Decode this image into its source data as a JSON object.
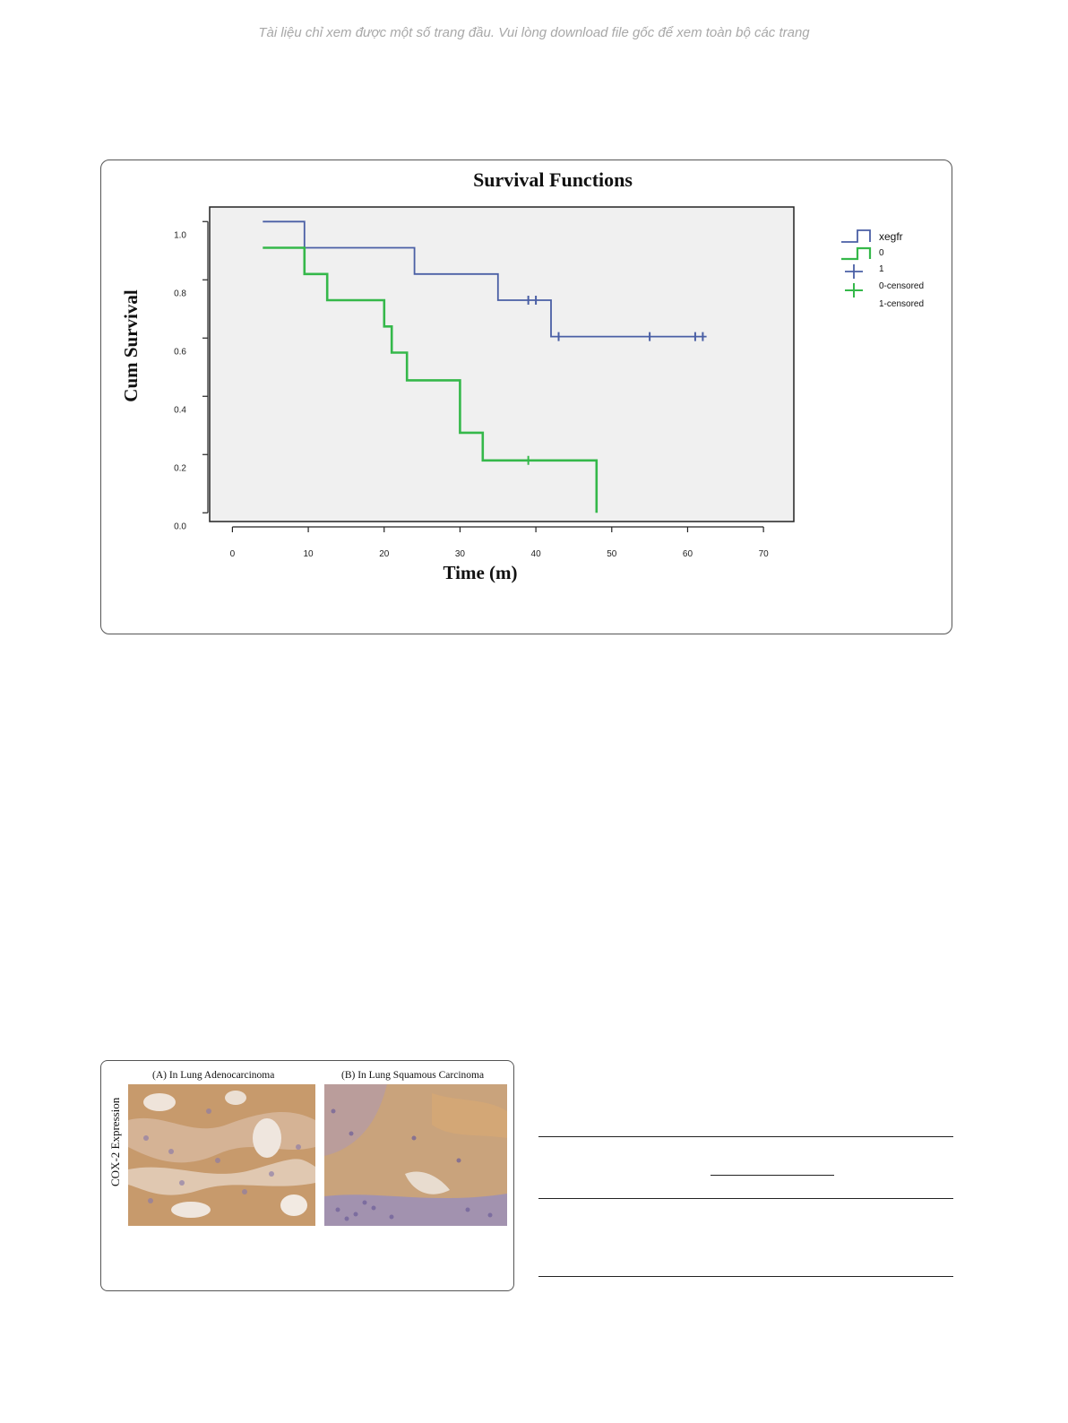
{
  "notice": "Tài liệu chỉ xem được một số trang đầu. Vui lòng download file gốc để xem toàn bộ các trang",
  "figure_panels": {
    "ylabel": "COX-2 Expression",
    "panel_a_title": "(A) In Lung Adenocarcinoma",
    "panel_b_title": "(B) In Lung Squamous Carcinoma"
  },
  "colors": {
    "group_0": "#4a5fa5",
    "group_1": "#35b84a",
    "plot_bg": "#f0f0f0"
  },
  "chart_data": {
    "type": "line",
    "title": "Survival Functions",
    "xlabel": "Time (m)",
    "ylabel": "Cum Survival",
    "xlim": [
      -3,
      74
    ],
    "ylim": [
      -0.03,
      1.05
    ],
    "x_ticks": [
      0,
      10,
      20,
      30,
      40,
      50,
      60,
      70
    ],
    "y_ticks": [
      0.0,
      0.2,
      0.4,
      0.6,
      0.8,
      1.0
    ],
    "x_tick_labels": [
      "0",
      "10",
      "20",
      "30",
      "40",
      "50",
      "60",
      "70"
    ],
    "y_tick_labels": [
      "0.0",
      "0.2",
      "0.4",
      "0.6",
      "0.8",
      "1.0"
    ],
    "grid": false,
    "legend_title": "xegfr",
    "legend_position": "right",
    "legend_labels": [
      "0",
      "1",
      "0-censored",
      "1-censored"
    ],
    "series": [
      {
        "name": "0",
        "step": [
          [
            4,
            1.0
          ],
          [
            9.5,
            1.0
          ],
          [
            9.5,
            0.91
          ],
          [
            24,
            0.91
          ],
          [
            24,
            0.82
          ],
          [
            35,
            0.82
          ],
          [
            35,
            0.73
          ],
          [
            42,
            0.73
          ],
          [
            42,
            0.605
          ],
          [
            62.5,
            0.605
          ]
        ],
        "censored": [
          [
            39,
            0.73
          ],
          [
            40,
            0.73
          ],
          [
            43,
            0.605
          ],
          [
            55,
            0.605
          ],
          [
            61,
            0.605
          ],
          [
            62,
            0.605
          ]
        ]
      },
      {
        "name": "1",
        "step": [
          [
            4,
            0.91
          ],
          [
            9.5,
            0.91
          ],
          [
            9.5,
            0.82
          ],
          [
            12.5,
            0.82
          ],
          [
            12.5,
            0.73
          ],
          [
            20,
            0.73
          ],
          [
            20,
            0.64
          ],
          [
            21,
            0.64
          ],
          [
            21,
            0.55
          ],
          [
            23,
            0.55
          ],
          [
            23,
            0.455
          ],
          [
            30,
            0.455
          ],
          [
            30,
            0.275
          ],
          [
            33,
            0.275
          ],
          [
            33,
            0.18
          ],
          [
            48,
            0.18
          ],
          [
            48,
            0.0
          ]
        ],
        "censored": [
          [
            39,
            0.18
          ]
        ]
      }
    ]
  }
}
